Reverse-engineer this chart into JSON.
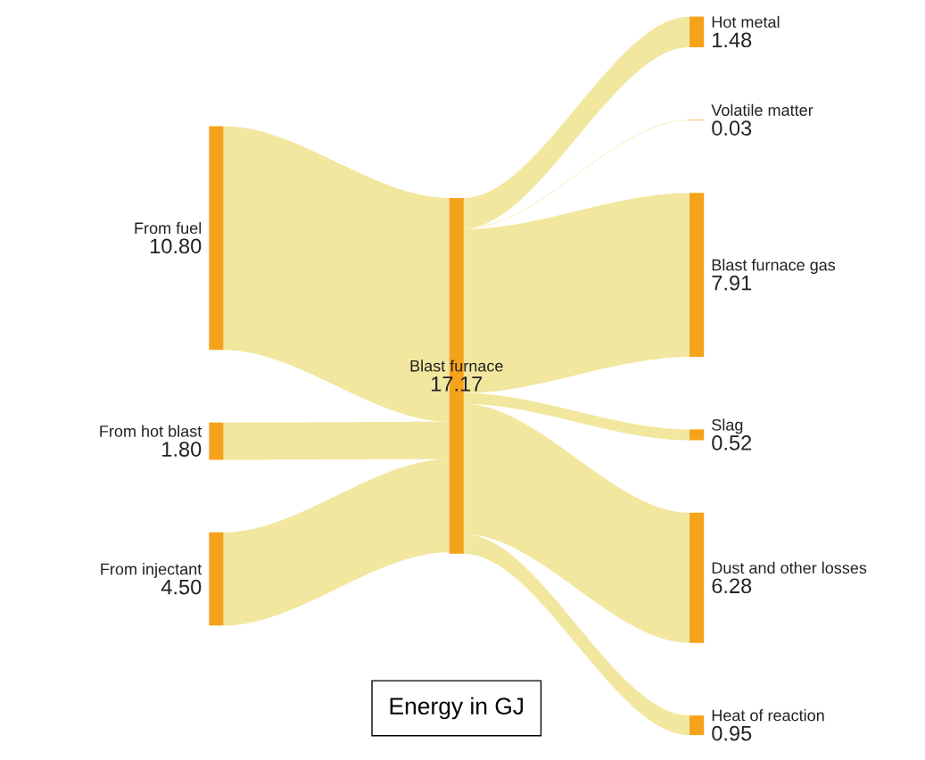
{
  "chart_data": {
    "type": "other",
    "categories": [
      "From fuel",
      "From hot blast",
      "From injectant",
      "Blast furnace",
      "Hot metal",
      "Volatile matter",
      "Blast furnace gas",
      "Slag",
      "Dust and other losses",
      "Heat of reaction"
    ],
    "values": [
      10.8,
      1.8,
      4.5,
      17.17,
      1.48,
      0.03,
      7.91,
      0.52,
      6.28,
      0.95
    ],
    "value_labels": [
      "10.80",
      "1.80",
      "4.50",
      "17.17",
      "1.48",
      "0.03",
      "7.91",
      "0.52",
      "6.28",
      "0.95"
    ],
    "colors": [
      "#f5a31a",
      "#f5a31a",
      "#f5a31a",
      "#f5a31a",
      "#f5a31a",
      "#f5a31a",
      "#f5a31a",
      "#f5a31a",
      "#f5a31a",
      "#f5a31a"
    ],
    "color": "#f0e38e",
    "annotations": [
      "Energy in GJ"
    ]
  }
}
